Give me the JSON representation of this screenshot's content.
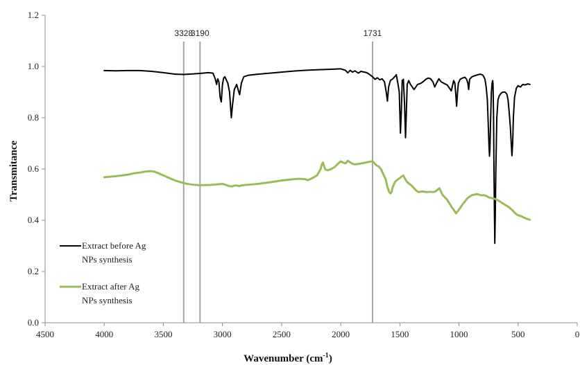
{
  "chart_data": {
    "type": "line",
    "title": "",
    "xlabel": "Wavenumber (cm",
    "xlabel_sup": "-1",
    "xlabel_close": ")",
    "ylabel": "Transmitance",
    "xlim": [
      4500,
      0
    ],
    "ylim": [
      0,
      1.2
    ],
    "x_reversed": true,
    "grid": false,
    "legend_position": "bottom-left",
    "x_ticks": [
      4500,
      4000,
      3500,
      3000,
      2500,
      2000,
      1500,
      1000,
      500,
      0
    ],
    "y_ticks": [
      0,
      0.2,
      0.4,
      0.6,
      0.8,
      1.0,
      1.2
    ],
    "y_tick_labels": [
      "0.0",
      "0.2",
      "0.4",
      "0.6",
      "0.8",
      "1.0",
      "1.2"
    ],
    "reference_lines": [
      {
        "x": 3328,
        "label": "3328",
        "color": "#a6a6a6"
      },
      {
        "x": 3190,
        "label": "3190",
        "color": "#a6a6a6"
      },
      {
        "x": 1731,
        "label": "1731",
        "color": "#a6a6a6"
      }
    ],
    "series": [
      {
        "name": "Extract before Ag NPs synthesis",
        "legend_lines": [
          "Extract before Ag",
          "NPs synthesis"
        ],
        "color": "#000000",
        "points": [
          [
            4000,
            0.984
          ],
          [
            3900,
            0.983
          ],
          [
            3800,
            0.984
          ],
          [
            3700,
            0.984
          ],
          [
            3600,
            0.981
          ],
          [
            3500,
            0.976
          ],
          [
            3400,
            0.97
          ],
          [
            3328,
            0.969
          ],
          [
            3250,
            0.971
          ],
          [
            3190,
            0.973
          ],
          [
            3120,
            0.976
          ],
          [
            3080,
            0.974
          ],
          [
            3060,
            0.95
          ],
          [
            3050,
            0.93
          ],
          [
            3040,
            0.952
          ],
          [
            3030,
            0.94
          ],
          [
            3020,
            0.88
          ],
          [
            3010,
            0.862
          ],
          [
            3000,
            0.93
          ],
          [
            2990,
            0.955
          ],
          [
            2980,
            0.96
          ],
          [
            2970,
            0.95
          ],
          [
            2955,
            0.935
          ],
          [
            2940,
            0.9
          ],
          [
            2925,
            0.8
          ],
          [
            2915,
            0.85
          ],
          [
            2900,
            0.91
          ],
          [
            2880,
            0.93
          ],
          [
            2865,
            0.905
          ],
          [
            2855,
            0.89
          ],
          [
            2840,
            0.935
          ],
          [
            2820,
            0.96
          ],
          [
            2780,
            0.966
          ],
          [
            2700,
            0.97
          ],
          [
            2600,
            0.974
          ],
          [
            2500,
            0.978
          ],
          [
            2400,
            0.982
          ],
          [
            2300,
            0.985
          ],
          [
            2200,
            0.987
          ],
          [
            2100,
            0.989
          ],
          [
            2000,
            0.991
          ],
          [
            1960,
            0.985
          ],
          [
            1940,
            0.975
          ],
          [
            1920,
            0.985
          ],
          [
            1900,
            0.978
          ],
          [
            1880,
            0.983
          ],
          [
            1850,
            0.974
          ],
          [
            1830,
            0.981
          ],
          [
            1800,
            0.978
          ],
          [
            1780,
            0.976
          ],
          [
            1760,
            0.97
          ],
          [
            1731,
            0.96
          ],
          [
            1710,
            0.95
          ],
          [
            1690,
            0.956
          ],
          [
            1670,
            0.948
          ],
          [
            1650,
            0.952
          ],
          [
            1630,
            0.94
          ],
          [
            1615,
            0.9
          ],
          [
            1605,
            0.865
          ],
          [
            1595,
            0.92
          ],
          [
            1580,
            0.945
          ],
          [
            1560,
            0.952
          ],
          [
            1540,
            0.962
          ],
          [
            1530,
            0.968
          ],
          [
            1515,
            0.93
          ],
          [
            1505,
            0.9
          ],
          [
            1495,
            0.74
          ],
          [
            1487,
            0.83
          ],
          [
            1480,
            0.945
          ],
          [
            1470,
            0.95
          ],
          [
            1460,
            0.85
          ],
          [
            1452,
            0.722
          ],
          [
            1445,
            0.82
          ],
          [
            1438,
            0.93
          ],
          [
            1425,
            0.945
          ],
          [
            1410,
            0.93
          ],
          [
            1395,
            0.92
          ],
          [
            1380,
            0.91
          ],
          [
            1365,
            0.92
          ],
          [
            1350,
            0.93
          ],
          [
            1320,
            0.935
          ],
          [
            1300,
            0.942
          ],
          [
            1280,
            0.95
          ],
          [
            1260,
            0.955
          ],
          [
            1240,
            0.952
          ],
          [
            1220,
            0.94
          ],
          [
            1205,
            0.92
          ],
          [
            1190,
            0.935
          ],
          [
            1170,
            0.952
          ],
          [
            1150,
            0.94
          ],
          [
            1130,
            0.935
          ],
          [
            1100,
            0.928
          ],
          [
            1080,
            0.915
          ],
          [
            1065,
            0.905
          ],
          [
            1055,
            0.925
          ],
          [
            1045,
            0.945
          ],
          [
            1035,
            0.935
          ],
          [
            1028,
            0.898
          ],
          [
            1020,
            0.845
          ],
          [
            1012,
            0.9
          ],
          [
            1005,
            0.935
          ],
          [
            990,
            0.95
          ],
          [
            970,
            0.955
          ],
          [
            950,
            0.958
          ],
          [
            935,
            0.95
          ],
          [
            925,
            0.935
          ],
          [
            918,
            0.91
          ],
          [
            910,
            0.95
          ],
          [
            890,
            0.96
          ],
          [
            860,
            0.965
          ],
          [
            840,
            0.968
          ],
          [
            820,
            0.97
          ],
          [
            800,
            0.967
          ],
          [
            790,
            0.96
          ],
          [
            780,
            0.95
          ],
          [
            770,
            0.92
          ],
          [
            760,
            0.87
          ],
          [
            752,
            0.77
          ],
          [
            746,
            0.69
          ],
          [
            742,
            0.65
          ],
          [
            738,
            0.68
          ],
          [
            732,
            0.8
          ],
          [
            726,
            0.9
          ],
          [
            720,
            0.935
          ],
          [
            715,
            0.945
          ],
          [
            712,
            0.93
          ],
          [
            708,
            0.82
          ],
          [
            704,
            0.6
          ],
          [
            700,
            0.42
          ],
          [
            697,
            0.31
          ],
          [
            693,
            0.42
          ],
          [
            688,
            0.6
          ],
          [
            680,
            0.8
          ],
          [
            670,
            0.87
          ],
          [
            660,
            0.885
          ],
          [
            645,
            0.895
          ],
          [
            630,
            0.9
          ],
          [
            610,
            0.9
          ],
          [
            595,
            0.892
          ],
          [
            585,
            0.87
          ],
          [
            575,
            0.82
          ],
          [
            565,
            0.76
          ],
          [
            558,
            0.7
          ],
          [
            552,
            0.652
          ],
          [
            546,
            0.7
          ],
          [
            540,
            0.8
          ],
          [
            530,
            0.88
          ],
          [
            515,
            0.915
          ],
          [
            500,
            0.925
          ],
          [
            480,
            0.92
          ],
          [
            460,
            0.93
          ],
          [
            440,
            0.928
          ],
          [
            420,
            0.932
          ],
          [
            400,
            0.93
          ]
        ]
      },
      {
        "name": "Extract after Ag NPs synthesis",
        "legend_lines": [
          "Extract after Ag",
          "NPs synthesis"
        ],
        "color": "#9bbb59",
        "points": [
          [
            4000,
            0.568
          ],
          [
            3950,
            0.57
          ],
          [
            3900,
            0.572
          ],
          [
            3850,
            0.575
          ],
          [
            3800,
            0.578
          ],
          [
            3750,
            0.583
          ],
          [
            3700,
            0.586
          ],
          [
            3650,
            0.59
          ],
          [
            3610,
            0.592
          ],
          [
            3580,
            0.59
          ],
          [
            3550,
            0.585
          ],
          [
            3500,
            0.575
          ],
          [
            3450,
            0.565
          ],
          [
            3400,
            0.555
          ],
          [
            3350,
            0.548
          ],
          [
            3300,
            0.542
          ],
          [
            3250,
            0.539
          ],
          [
            3200,
            0.537
          ],
          [
            3150,
            0.537
          ],
          [
            3100,
            0.538
          ],
          [
            3050,
            0.54
          ],
          [
            3000,
            0.542
          ],
          [
            2970,
            0.538
          ],
          [
            2940,
            0.533
          ],
          [
            2920,
            0.532
          ],
          [
            2900,
            0.535
          ],
          [
            2880,
            0.536
          ],
          [
            2860,
            0.533
          ],
          [
            2840,
            0.536
          ],
          [
            2800,
            0.538
          ],
          [
            2700,
            0.542
          ],
          [
            2600,
            0.548
          ],
          [
            2500,
            0.555
          ],
          [
            2400,
            0.56
          ],
          [
            2350,
            0.562
          ],
          [
            2300,
            0.56
          ],
          [
            2280,
            0.556
          ],
          [
            2250,
            0.562
          ],
          [
            2200,
            0.575
          ],
          [
            2170,
            0.6
          ],
          [
            2160,
            0.618
          ],
          [
            2150,
            0.625
          ],
          [
            2140,
            0.61
          ],
          [
            2130,
            0.598
          ],
          [
            2110,
            0.595
          ],
          [
            2080,
            0.6
          ],
          [
            2050,
            0.608
          ],
          [
            2020,
            0.622
          ],
          [
            2000,
            0.63
          ],
          [
            1980,
            0.625
          ],
          [
            1960,
            0.622
          ],
          [
            1940,
            0.632
          ],
          [
            1920,
            0.626
          ],
          [
            1900,
            0.62
          ],
          [
            1880,
            0.618
          ],
          [
            1850,
            0.62
          ],
          [
            1800,
            0.624
          ],
          [
            1760,
            0.628
          ],
          [
            1731,
            0.63
          ],
          [
            1720,
            0.625
          ],
          [
            1700,
            0.615
          ],
          [
            1680,
            0.61
          ],
          [
            1660,
            0.6
          ],
          [
            1640,
            0.58
          ],
          [
            1620,
            0.56
          ],
          [
            1605,
            0.53
          ],
          [
            1590,
            0.51
          ],
          [
            1580,
            0.505
          ],
          [
            1570,
            0.51
          ],
          [
            1560,
            0.53
          ],
          [
            1540,
            0.55
          ],
          [
            1520,
            0.558
          ],
          [
            1500,
            0.565
          ],
          [
            1480,
            0.572
          ],
          [
            1470,
            0.575
          ],
          [
            1460,
            0.565
          ],
          [
            1440,
            0.55
          ],
          [
            1420,
            0.542
          ],
          [
            1400,
            0.535
          ],
          [
            1380,
            0.525
          ],
          [
            1360,
            0.515
          ],
          [
            1340,
            0.51
          ],
          [
            1320,
            0.512
          ],
          [
            1300,
            0.512
          ],
          [
            1280,
            0.51
          ],
          [
            1260,
            0.51
          ],
          [
            1240,
            0.511
          ],
          [
            1220,
            0.51
          ],
          [
            1200,
            0.512
          ],
          [
            1180,
            0.52
          ],
          [
            1165,
            0.525
          ],
          [
            1155,
            0.515
          ],
          [
            1140,
            0.5
          ],
          [
            1120,
            0.49
          ],
          [
            1100,
            0.48
          ],
          [
            1080,
            0.465
          ],
          [
            1060,
            0.45
          ],
          [
            1040,
            0.438
          ],
          [
            1025,
            0.427
          ],
          [
            1010,
            0.435
          ],
          [
            990,
            0.448
          ],
          [
            970,
            0.462
          ],
          [
            950,
            0.473
          ],
          [
            930,
            0.485
          ],
          [
            910,
            0.492
          ],
          [
            890,
            0.498
          ],
          [
            870,
            0.5
          ],
          [
            850,
            0.502
          ],
          [
            830,
            0.5
          ],
          [
            810,
            0.497
          ],
          [
            790,
            0.498
          ],
          [
            770,
            0.495
          ],
          [
            750,
            0.49
          ],
          [
            730,
            0.487
          ],
          [
            710,
            0.485
          ],
          [
            700,
            0.484
          ],
          [
            690,
            0.482
          ],
          [
            670,
            0.478
          ],
          [
            650,
            0.472
          ],
          [
            630,
            0.466
          ],
          [
            610,
            0.46
          ],
          [
            590,
            0.455
          ],
          [
            570,
            0.448
          ],
          [
            550,
            0.44
          ],
          [
            530,
            0.43
          ],
          [
            510,
            0.422
          ],
          [
            490,
            0.418
          ],
          [
            470,
            0.415
          ],
          [
            450,
            0.41
          ],
          [
            430,
            0.406
          ],
          [
            400,
            0.402
          ]
        ]
      }
    ]
  }
}
